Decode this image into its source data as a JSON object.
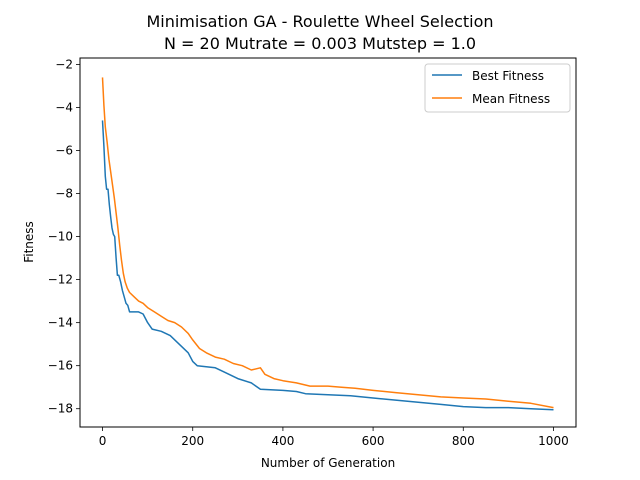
{
  "chart_data": {
    "type": "line",
    "title": "Minimisation GA - Roulette Wheel Selection",
    "subtitle": "N = 20 Mutrate = 0.003 Mutstep = 1.0",
    "xlabel": "Number of Generation",
    "ylabel": "Fitness",
    "xlim": [
      -50,
      1050
    ],
    "ylim": [
      -18.85,
      -1.7
    ],
    "xticks": [
      0,
      200,
      400,
      600,
      800,
      1000
    ],
    "yticks": [
      -18,
      -16,
      -14,
      -12,
      -10,
      -8,
      -6,
      -4,
      -2
    ],
    "grid": false,
    "legend_position": "top-right",
    "series": [
      {
        "name": "Best Fitness",
        "color": "#1f77b4",
        "points": [
          [
            0,
            -4.6
          ],
          [
            3,
            -5.8
          ],
          [
            6,
            -7.2
          ],
          [
            9,
            -7.8
          ],
          [
            12,
            -7.8
          ],
          [
            15,
            -8.5
          ],
          [
            18,
            -9.1
          ],
          [
            21,
            -9.6
          ],
          [
            24,
            -9.9
          ],
          [
            27,
            -10.0
          ],
          [
            30,
            -11.0
          ],
          [
            33,
            -11.8
          ],
          [
            36,
            -11.8
          ],
          [
            40,
            -12.1
          ],
          [
            44,
            -12.5
          ],
          [
            48,
            -12.8
          ],
          [
            52,
            -13.1
          ],
          [
            56,
            -13.2
          ],
          [
            60,
            -13.5
          ],
          [
            80,
            -13.5
          ],
          [
            90,
            -13.6
          ],
          [
            100,
            -14.0
          ],
          [
            110,
            -14.3
          ],
          [
            130,
            -14.4
          ],
          [
            150,
            -14.6
          ],
          [
            170,
            -15.0
          ],
          [
            190,
            -15.4
          ],
          [
            200,
            -15.8
          ],
          [
            210,
            -16.0
          ],
          [
            250,
            -16.1
          ],
          [
            270,
            -16.3
          ],
          [
            300,
            -16.6
          ],
          [
            330,
            -16.8
          ],
          [
            350,
            -17.1
          ],
          [
            400,
            -17.15
          ],
          [
            430,
            -17.2
          ],
          [
            450,
            -17.3
          ],
          [
            500,
            -17.35
          ],
          [
            550,
            -17.4
          ],
          [
            600,
            -17.5
          ],
          [
            650,
            -17.6
          ],
          [
            700,
            -17.7
          ],
          [
            750,
            -17.8
          ],
          [
            800,
            -17.9
          ],
          [
            850,
            -17.95
          ],
          [
            900,
            -17.95
          ],
          [
            950,
            -18.0
          ],
          [
            1000,
            -18.05
          ]
        ]
      },
      {
        "name": "Mean Fitness",
        "color": "#ff7f0e",
        "points": [
          [
            0,
            -2.6
          ],
          [
            3,
            -3.9
          ],
          [
            6,
            -4.9
          ],
          [
            10,
            -5.6
          ],
          [
            14,
            -6.4
          ],
          [
            18,
            -7.0
          ],
          [
            22,
            -7.6
          ],
          [
            26,
            -8.2
          ],
          [
            30,
            -8.9
          ],
          [
            34,
            -9.6
          ],
          [
            38,
            -10.4
          ],
          [
            42,
            -11.1
          ],
          [
            46,
            -11.7
          ],
          [
            50,
            -12.1
          ],
          [
            55,
            -12.4
          ],
          [
            60,
            -12.6
          ],
          [
            70,
            -12.8
          ],
          [
            80,
            -13.0
          ],
          [
            90,
            -13.1
          ],
          [
            100,
            -13.3
          ],
          [
            115,
            -13.5
          ],
          [
            130,
            -13.7
          ],
          [
            145,
            -13.9
          ],
          [
            160,
            -14.0
          ],
          [
            175,
            -14.2
          ],
          [
            190,
            -14.5
          ],
          [
            200,
            -14.8
          ],
          [
            215,
            -15.2
          ],
          [
            230,
            -15.4
          ],
          [
            250,
            -15.6
          ],
          [
            270,
            -15.7
          ],
          [
            290,
            -15.9
          ],
          [
            310,
            -16.0
          ],
          [
            330,
            -16.2
          ],
          [
            350,
            -16.1
          ],
          [
            360,
            -16.4
          ],
          [
            380,
            -16.6
          ],
          [
            400,
            -16.7
          ],
          [
            430,
            -16.8
          ],
          [
            460,
            -16.95
          ],
          [
            500,
            -16.95
          ],
          [
            530,
            -17.0
          ],
          [
            560,
            -17.05
          ],
          [
            600,
            -17.15
          ],
          [
            650,
            -17.25
          ],
          [
            700,
            -17.35
          ],
          [
            750,
            -17.45
          ],
          [
            800,
            -17.5
          ],
          [
            850,
            -17.55
          ],
          [
            900,
            -17.65
          ],
          [
            950,
            -17.75
          ],
          [
            1000,
            -17.95
          ]
        ]
      }
    ]
  }
}
